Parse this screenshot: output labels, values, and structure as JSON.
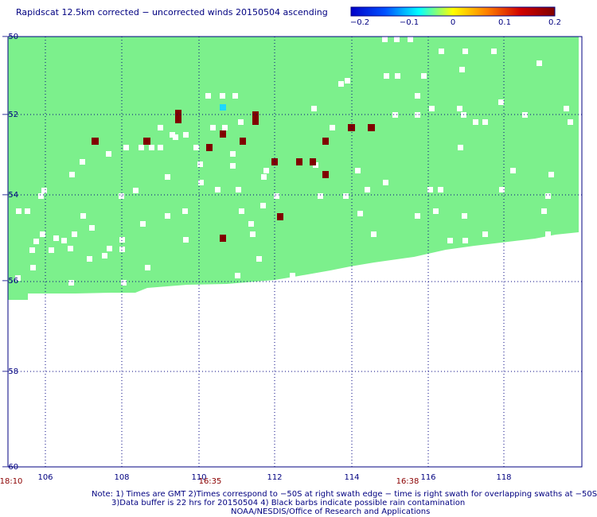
{
  "title": "Rapidscat 12.5km corrected − uncorrected winds 20150504 ascending",
  "colorbar": {
    "ticks": [
      "−0.2",
      "−0.1",
      "0",
      "0.1",
      "0.2"
    ],
    "colors": [
      "#0000c8",
      "#0050ff",
      "#00ffff",
      "#ffff00",
      "#ff8000",
      "#d00000",
      "#800000"
    ]
  },
  "map": {
    "x_ticks": [
      "106",
      "108",
      "110",
      "112",
      "114",
      "116",
      "118"
    ],
    "y_ticks": [
      "−50",
      "−52",
      "−54",
      "−56",
      "−58",
      "−60"
    ],
    "time_labels": [
      "18:10",
      "16:35",
      "16:38"
    ],
    "colors": {
      "fill": "#7cf08c",
      "missing": "#ffffff",
      "positive": "#800000",
      "negative": "#1ed7ff",
      "grid": "#000080"
    }
  },
  "notes": [
    "Note: 1) Times are GMT 2)Times correspond to −50S at right swath edge − time is right swath for overlapping swaths at −50S",
    "3)Data buffer is 22 hrs for 20150504 4) Black barbs indicate possible rain contamination",
    "NOAA/NESDIS/Office of Research and Applications"
  ]
}
